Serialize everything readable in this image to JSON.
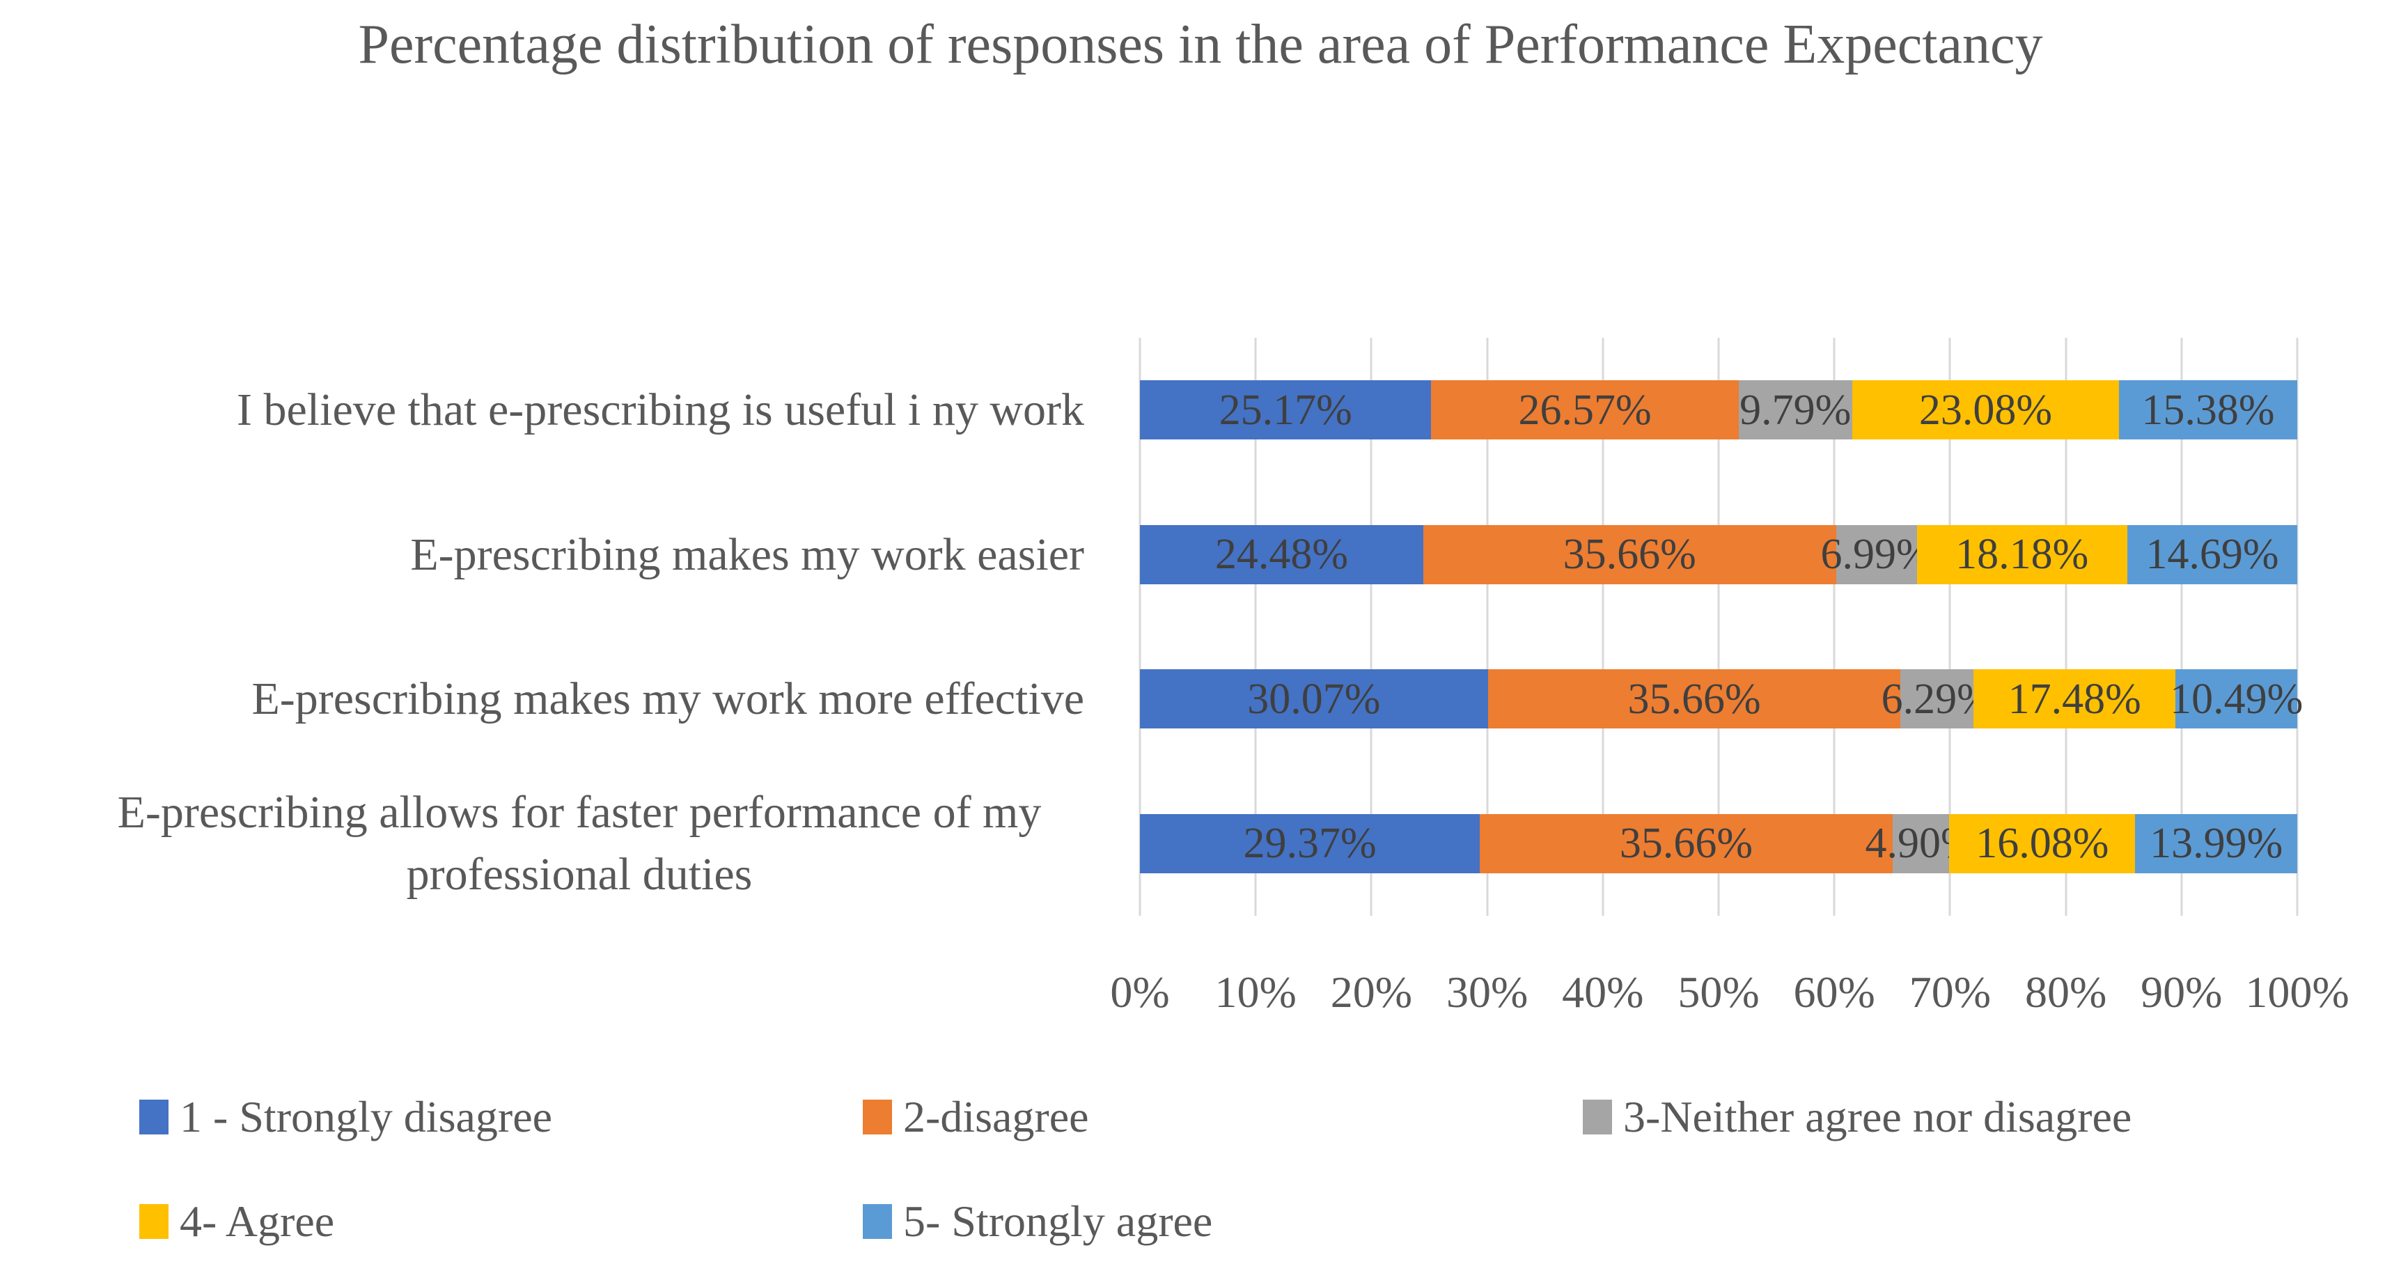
{
  "chart_data": {
    "type": "bar",
    "orientation": "horizontal",
    "stacked": true,
    "title": "Percentage distribution of responses in the area of Performance Expectancy",
    "categories": [
      "I believe that e-prescribing is useful i ny work",
      "E-prescribing makes my work easier",
      "E-prescribing makes my work more effective",
      "E-prescribing allows for faster performance of my professional duties"
    ],
    "series": [
      {
        "name": "1 - Strongly disagree",
        "color": "#4472C4",
        "values": [
          25.17,
          24.48,
          30.07,
          29.37
        ]
      },
      {
        "name": "2-disagree",
        "color": "#ED7D31",
        "values": [
          26.57,
          35.66,
          35.66,
          35.66
        ]
      },
      {
        "name": "3-Neither agree nor disagree",
        "color": "#A5A5A5",
        "values": [
          9.79,
          6.99,
          6.29,
          4.9
        ]
      },
      {
        "name": "4- Agree",
        "color": "#FFC000",
        "values": [
          23.08,
          18.18,
          17.48,
          16.08
        ]
      },
      {
        "name": "5- Strongly agree",
        "color": "#5B9BD5",
        "values": [
          15.38,
          14.69,
          10.49,
          13.99
        ]
      }
    ],
    "value_label_format": "0.00%",
    "xticks": [
      "0%",
      "10%",
      "20%",
      "30%",
      "40%",
      "50%",
      "60%",
      "70%",
      "80%",
      "90%",
      "100%"
    ],
    "xlim": [
      0,
      100
    ],
    "grid": "vertical",
    "legend_position": "bottom",
    "colors": {
      "gridline": "#D9D9D9",
      "text": "#595959",
      "value_text": "#3F3F3F",
      "background": "#FFFFFF"
    }
  }
}
